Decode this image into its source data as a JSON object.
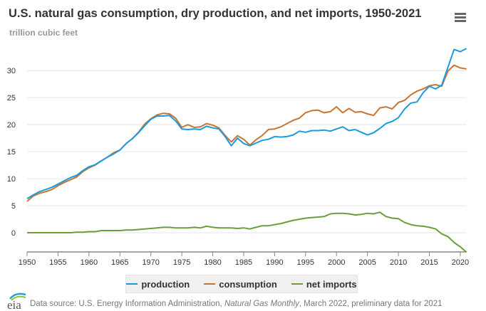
{
  "chart_data": {
    "type": "line",
    "title": "U.S. natural gas consumption, dry production, and net imports, 1950-2021",
    "subtitle": "trillion cubic feet",
    "xlabel": "",
    "ylabel": "trillion cubic feet",
    "xlim": [
      1950,
      2021
    ],
    "ylim": [
      -3.55,
      34.9
    ],
    "x_ticks": [
      1950,
      1955,
      1960,
      1965,
      1970,
      1975,
      1980,
      1985,
      1990,
      1995,
      2000,
      2005,
      2010,
      2015,
      2020
    ],
    "y_ticks": [
      0,
      5,
      10,
      15,
      20,
      25,
      30
    ],
    "grid": "horizontal",
    "legend_position": "bottom",
    "x_start": 1950,
    "series": [
      {
        "name": "production",
        "color": "#1a9be0",
        "values": [
          6.3,
          7.0,
          7.6,
          8.0,
          8.4,
          9.0,
          9.6,
          10.2,
          10.6,
          11.5,
          12.2,
          12.6,
          13.3,
          14.0,
          14.6,
          15.3,
          16.5,
          17.4,
          18.5,
          19.8,
          21.0,
          21.6,
          21.6,
          21.7,
          20.7,
          19.2,
          19.1,
          19.2,
          19.1,
          19.7,
          19.4,
          19.2,
          17.8,
          16.1,
          17.5,
          16.5,
          16.1,
          16.6,
          17.1,
          17.3,
          17.8,
          17.7,
          17.8,
          18.1,
          18.8,
          18.6,
          18.9,
          18.9,
          19.0,
          18.8,
          19.2,
          19.6,
          18.9,
          19.1,
          18.6,
          18.1,
          18.5,
          19.3,
          20.2,
          20.6,
          21.3,
          22.9,
          24.0,
          24.2,
          25.9,
          27.1,
          26.6,
          27.3,
          30.6,
          33.9,
          33.5,
          34.1
        ]
      },
      {
        "name": "consumption",
        "color": "#c87533",
        "values": [
          5.8,
          6.8,
          7.3,
          7.6,
          8.0,
          8.7,
          9.3,
          9.8,
          10.3,
          11.3,
          12.0,
          12.5,
          13.3,
          14.0,
          14.8,
          15.3,
          16.5,
          17.4,
          18.6,
          20.1,
          21.1,
          21.8,
          22.1,
          22.0,
          21.2,
          19.5,
          20.0,
          19.5,
          19.6,
          20.2,
          19.9,
          19.4,
          18.0,
          16.8,
          17.95,
          17.3,
          16.2,
          17.2,
          18.0,
          19.1,
          19.2,
          19.6,
          20.2,
          20.8,
          21.2,
          22.2,
          22.6,
          22.7,
          22.2,
          22.4,
          23.3,
          22.2,
          23.0,
          22.3,
          22.4,
          22.0,
          21.7,
          23.1,
          23.3,
          22.9,
          24.1,
          24.5,
          25.5,
          26.2,
          26.6,
          27.2,
          27.4,
          27.1,
          29.9,
          31.0,
          30.5,
          30.3
        ]
      },
      {
        "name": "net imports",
        "color": "#6b9e3a",
        "values": [
          0.0,
          0.0,
          0.0,
          0.0,
          0.0,
          0.0,
          0.0,
          0.0,
          0.1,
          0.1,
          0.2,
          0.2,
          0.4,
          0.4,
          0.4,
          0.4,
          0.5,
          0.5,
          0.6,
          0.7,
          0.8,
          0.9,
          1.0,
          1.0,
          0.9,
          0.9,
          0.9,
          1.0,
          0.9,
          1.2,
          1.0,
          0.9,
          0.9,
          0.9,
          0.8,
          0.9,
          0.7,
          1.0,
          1.3,
          1.3,
          1.5,
          1.7,
          2.0,
          2.3,
          2.5,
          2.7,
          2.8,
          2.9,
          3.0,
          3.5,
          3.6,
          3.6,
          3.5,
          3.3,
          3.4,
          3.6,
          3.5,
          3.8,
          3.0,
          2.7,
          2.6,
          1.9,
          1.5,
          1.3,
          1.2,
          1.0,
          0.7,
          -0.2,
          -0.7,
          -1.8,
          -2.6,
          -3.6
        ]
      }
    ]
  },
  "menu_icon": "hamburger-menu-icon",
  "footer": {
    "prefix": "Data source: U.S. Energy Information Administration, ",
    "italic": "Natural Gas Monthly",
    "suffix": ", March 2022, preliminary data for 2021"
  },
  "logo_text": "eia"
}
